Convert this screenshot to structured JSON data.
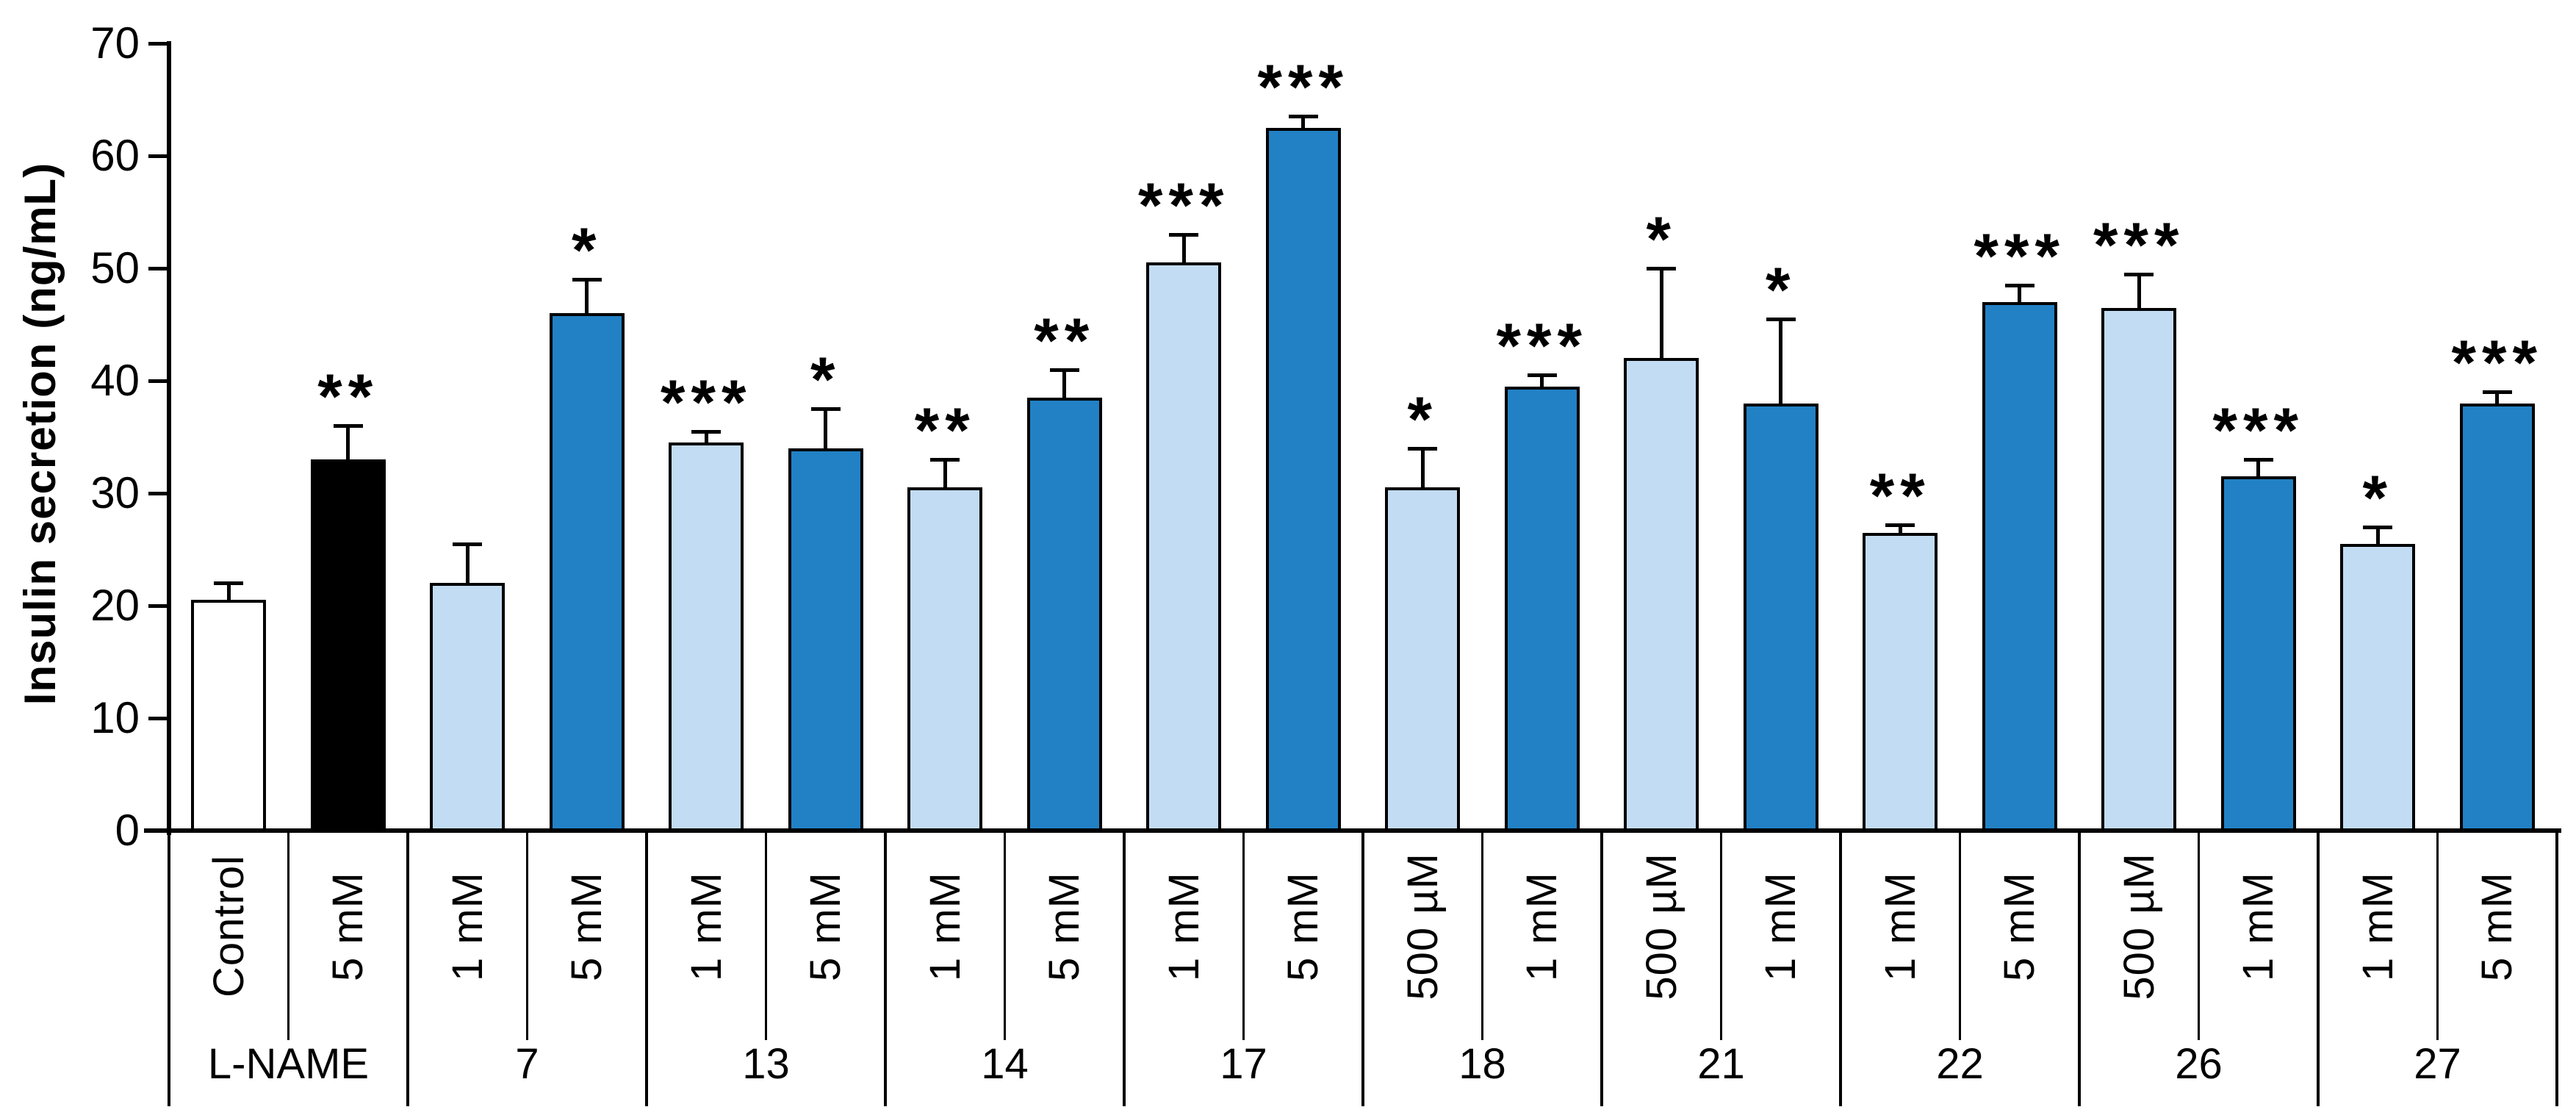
{
  "chart_data": {
    "type": "bar",
    "title": "",
    "ylabel": "Insulin secretion (ng/mL)",
    "ylim": [
      0,
      70
    ],
    "y_ticks": [
      "0",
      "10",
      "20",
      "30",
      "40",
      "50",
      "60",
      "70"
    ],
    "grid": false,
    "legend": null,
    "error_bars": "upward SEM with caps",
    "bar_colors": {
      "white": "#FFFFFF",
      "black": "#000000",
      "light_blue": "#C2DCF3",
      "dark_blue": "#2281C4"
    },
    "outline_color": "#000000",
    "groups": [
      {
        "group": "L-NAME",
        "bars": [
          {
            "label": "Control",
            "value": 20.5,
            "error": 1.5,
            "sig": "",
            "fill": "white"
          },
          {
            "label": "5 mM",
            "value": 33,
            "error": 3,
            "sig": "**",
            "fill": "black"
          }
        ]
      },
      {
        "group": "7",
        "bars": [
          {
            "label": "1 mM",
            "value": 22,
            "error": 3.5,
            "sig": "",
            "fill": "light_blue"
          },
          {
            "label": "5 mM",
            "value": 46,
            "error": 3,
            "sig": "*",
            "fill": "dark_blue"
          }
        ]
      },
      {
        "group": "13",
        "bars": [
          {
            "label": "1 mM",
            "value": 34.5,
            "error": 1,
            "sig": "***",
            "fill": "light_blue"
          },
          {
            "label": "5 mM",
            "value": 34,
            "error": 3.5,
            "sig": "*",
            "fill": "dark_blue"
          }
        ]
      },
      {
        "group": "14",
        "bars": [
          {
            "label": "1 mM",
            "value": 30.5,
            "error": 2.5,
            "sig": "**",
            "fill": "light_blue"
          },
          {
            "label": "5 mM",
            "value": 38.5,
            "error": 2.5,
            "sig": "**",
            "fill": "dark_blue"
          }
        ]
      },
      {
        "group": "17",
        "bars": [
          {
            "label": "1 mM",
            "value": 50.5,
            "error": 2.5,
            "sig": "***",
            "fill": "light_blue"
          },
          {
            "label": "5 mM",
            "value": 62.5,
            "error": 1,
            "sig": "***",
            "fill": "dark_blue"
          }
        ]
      },
      {
        "group": "18",
        "bars": [
          {
            "label": "500 µM",
            "value": 30.5,
            "error": 3.5,
            "sig": "*",
            "fill": "light_blue"
          },
          {
            "label": "1 mM",
            "value": 39.5,
            "error": 1,
            "sig": "***",
            "fill": "dark_blue"
          }
        ]
      },
      {
        "group": "21",
        "bars": [
          {
            "label": "500 µM",
            "value": 42,
            "error": 8,
            "sig": "*",
            "fill": "light_blue"
          },
          {
            "label": "1 mM",
            "value": 38,
            "error": 7.5,
            "sig": "*",
            "fill": "dark_blue"
          }
        ]
      },
      {
        "group": "22",
        "bars": [
          {
            "label": "1 mM",
            "value": 26.5,
            "error": 0.7,
            "sig": "**",
            "fill": "light_blue"
          },
          {
            "label": "5 mM",
            "value": 47,
            "error": 1.5,
            "sig": "***",
            "fill": "dark_blue"
          }
        ]
      },
      {
        "group": "26",
        "bars": [
          {
            "label": "500 µM",
            "value": 46.5,
            "error": 3,
            "sig": "***",
            "fill": "light_blue"
          },
          {
            "label": "1 mM",
            "value": 31.5,
            "error": 1.5,
            "sig": "***",
            "fill": "dark_blue"
          }
        ]
      },
      {
        "group": "27",
        "bars": [
          {
            "label": "1 mM",
            "value": 25.5,
            "error": 1.5,
            "sig": "*",
            "fill": "light_blue"
          },
          {
            "label": "5 mM",
            "value": 38,
            "error": 1,
            "sig": "***",
            "fill": "dark_blue"
          }
        ]
      }
    ]
  }
}
